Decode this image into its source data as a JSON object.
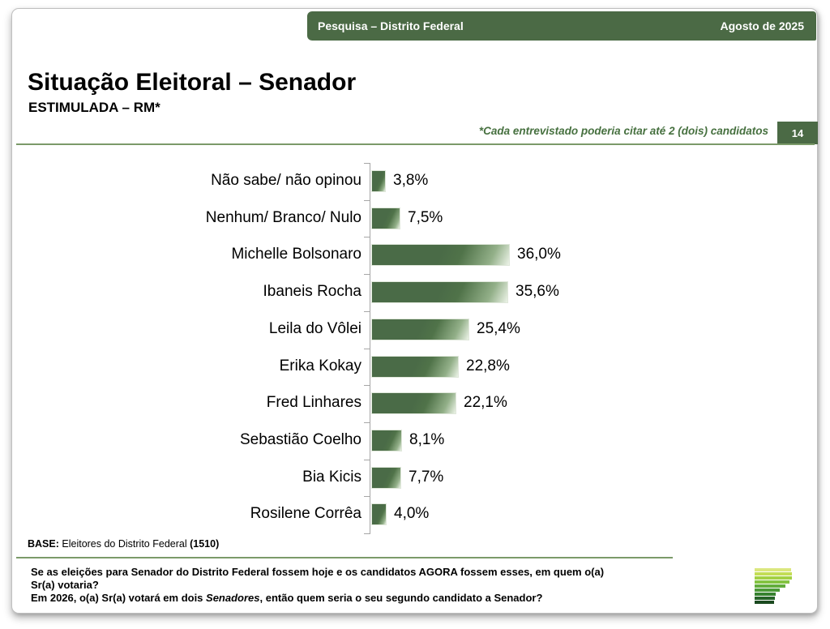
{
  "slide": {
    "header": {
      "left_label": "Pesquisa – Distrito Federal",
      "right_label": "Agosto de 2025"
    },
    "title": "Situação Eleitoral – Senador",
    "subtitle": "ESTIMULADA – RM*",
    "note": "*Cada entrevistado poderia citar até 2 (dois) candidatos",
    "page_number": "14",
    "base": {
      "label": "BASE:",
      "text": " Eleitores do Distrito Federal ",
      "count": "(1510)"
    },
    "footer": {
      "line1": "Se as eleições para Senador do Distrito Federal fossem hoje e os candidatos AGORA fossem esses, em quem o(a) Sr(a) votaria?",
      "line2_prefix": "Em 2026, o(a) Sr(a) votará em dois ",
      "line2_italic": "Senadores",
      "line2_suffix": ", então quem seria o seu segundo candidato a Senador?"
    }
  },
  "chart_data": {
    "type": "bar",
    "orientation": "horizontal",
    "title": "Situação Eleitoral – Senador (Estimulada – RM)",
    "categories": [
      "Não sabe/ não opinou",
      "Nenhum/ Branco/ Nulo",
      "Michelle Bolsonaro",
      "Ibaneis Rocha",
      "Leila do Vôlei",
      "Erika Kokay",
      "Fred Linhares",
      "Sebastião Coelho",
      "Bia Kicis",
      "Rosilene Corrêa"
    ],
    "values": [
      3.8,
      7.5,
      36.0,
      35.6,
      25.4,
      22.8,
      22.1,
      8.1,
      7.7,
      4.0
    ],
    "value_labels": [
      "3,8%",
      "7,5%",
      "36,0%",
      "35,6%",
      "25,4%",
      "22,8%",
      "22,1%",
      "8,1%",
      "7,7%",
      "4,0%"
    ],
    "xlim": [
      0,
      50
    ],
    "grid": false,
    "legend": false,
    "bar_color": "#4a6b47",
    "bar_gradient_light": "#ecf3e7",
    "axis_color": "#a6a6a6"
  },
  "colors": {
    "header_green": "#4b6a45",
    "note_green": "#46703f",
    "rule_green": "#7b9a69",
    "text": "#000000"
  },
  "logo": {
    "name": "striped-p-logo",
    "stripes": [
      {
        "w": 45,
        "c": "#dbe77f"
      },
      {
        "w": 46,
        "c": "#c3dd55"
      },
      {
        "w": 46,
        "c": "#a3d144"
      },
      {
        "w": 43,
        "c": "#83c341"
      },
      {
        "w": 38,
        "c": "#62ad3c"
      },
      {
        "w": 31,
        "c": "#4c9a38"
      },
      {
        "w": 26,
        "c": "#37822f"
      },
      {
        "w": 25,
        "c": "#276428"
      },
      {
        "w": 24,
        "c": "#1b4a20"
      }
    ]
  }
}
